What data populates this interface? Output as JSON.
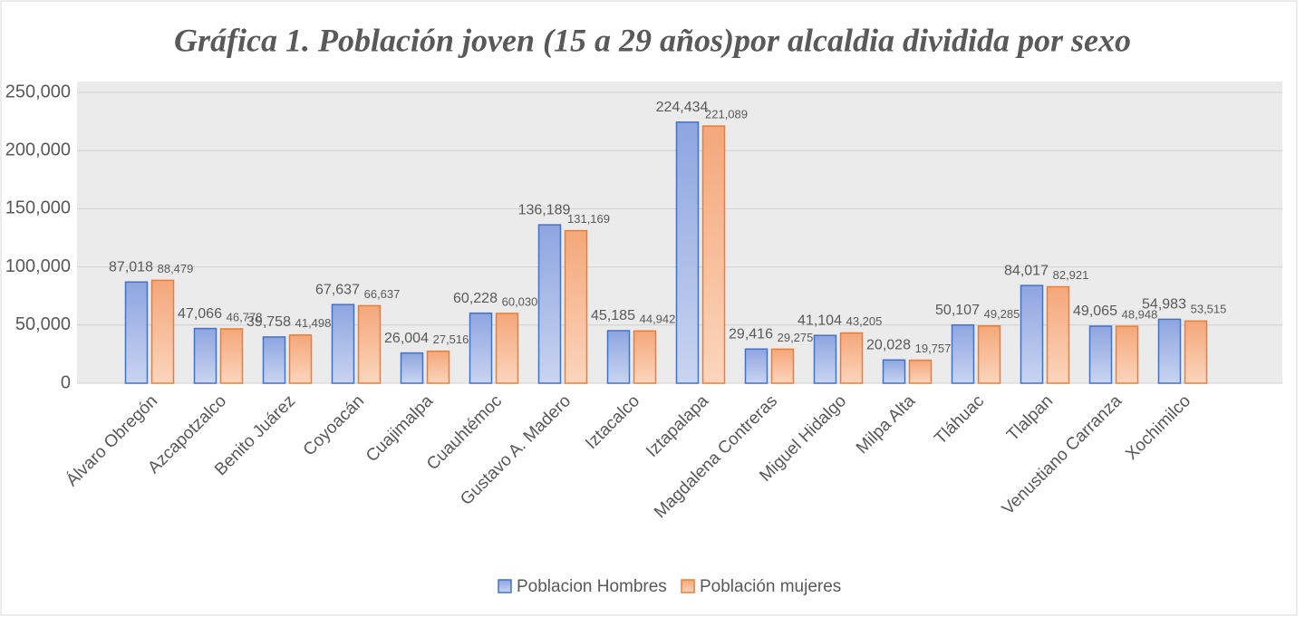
{
  "chart_data": {
    "type": "bar",
    "title": "Gráfica 1. Población joven (15 a 29 años)por alcaldia dividida por sexo",
    "categories": [
      "Álvaro Obregón",
      "Azcapotzalco",
      "Benito Juárez",
      "Coyoacán",
      "Cuajimalpa",
      "Cuauhtémoc",
      "Gustavo A. Madero",
      "Iztacalco",
      "Iztapalapa",
      "Magdalena Contreras",
      "Miguel Hidalgo",
      "Milpa Alta",
      "Tláhuac",
      "Tlalpan",
      "Venustiano Carranza",
      "Xochimilco"
    ],
    "series": [
      {
        "name": "Poblacion Hombres",
        "color": "#4472c4",
        "values": [
          87018,
          47066,
          39758,
          67637,
          26004,
          60228,
          136189,
          45185,
          224434,
          29416,
          41104,
          20028,
          50107,
          84017,
          49065,
          54983
        ],
        "value_labels": [
          "87,018",
          "47,066",
          "39,758",
          "67,637",
          "26,004",
          "60,228",
          "136,189",
          "45,185",
          "224,434",
          "29,416",
          "41,104",
          "20,028",
          "50,107",
          "84,017",
          "49,065",
          "54,983"
        ]
      },
      {
        "name": "Población mujeres",
        "color": "#ed7d31",
        "values": [
          88479,
          46778,
          41498,
          66637,
          27516,
          60030,
          131169,
          44942,
          221089,
          29275,
          43205,
          19757,
          49285,
          82921,
          48948,
          53515
        ],
        "value_labels": [
          "88,479",
          "46,778",
          "41,498",
          "66,637",
          "27,516",
          "60,030",
          "131,169",
          "44,942",
          "221,089",
          "29,275",
          "43,205",
          "19,757",
          "49,285",
          "82,921",
          "48,948",
          "53,515"
        ]
      }
    ],
    "ylim": [
      0,
      250000
    ],
    "yticks": [
      0,
      {
        "value": 50000,
        "label": "50,000"
      },
      {
        "value": 100000,
        "label": "100,000"
      },
      {
        "value": 150000,
        "label": "150,000"
      },
      {
        "value": 200000,
        "label": "200,000"
      },
      {
        "value": 250000,
        "label": "250,000"
      }
    ],
    "grid": true,
    "legend": "bottom"
  }
}
